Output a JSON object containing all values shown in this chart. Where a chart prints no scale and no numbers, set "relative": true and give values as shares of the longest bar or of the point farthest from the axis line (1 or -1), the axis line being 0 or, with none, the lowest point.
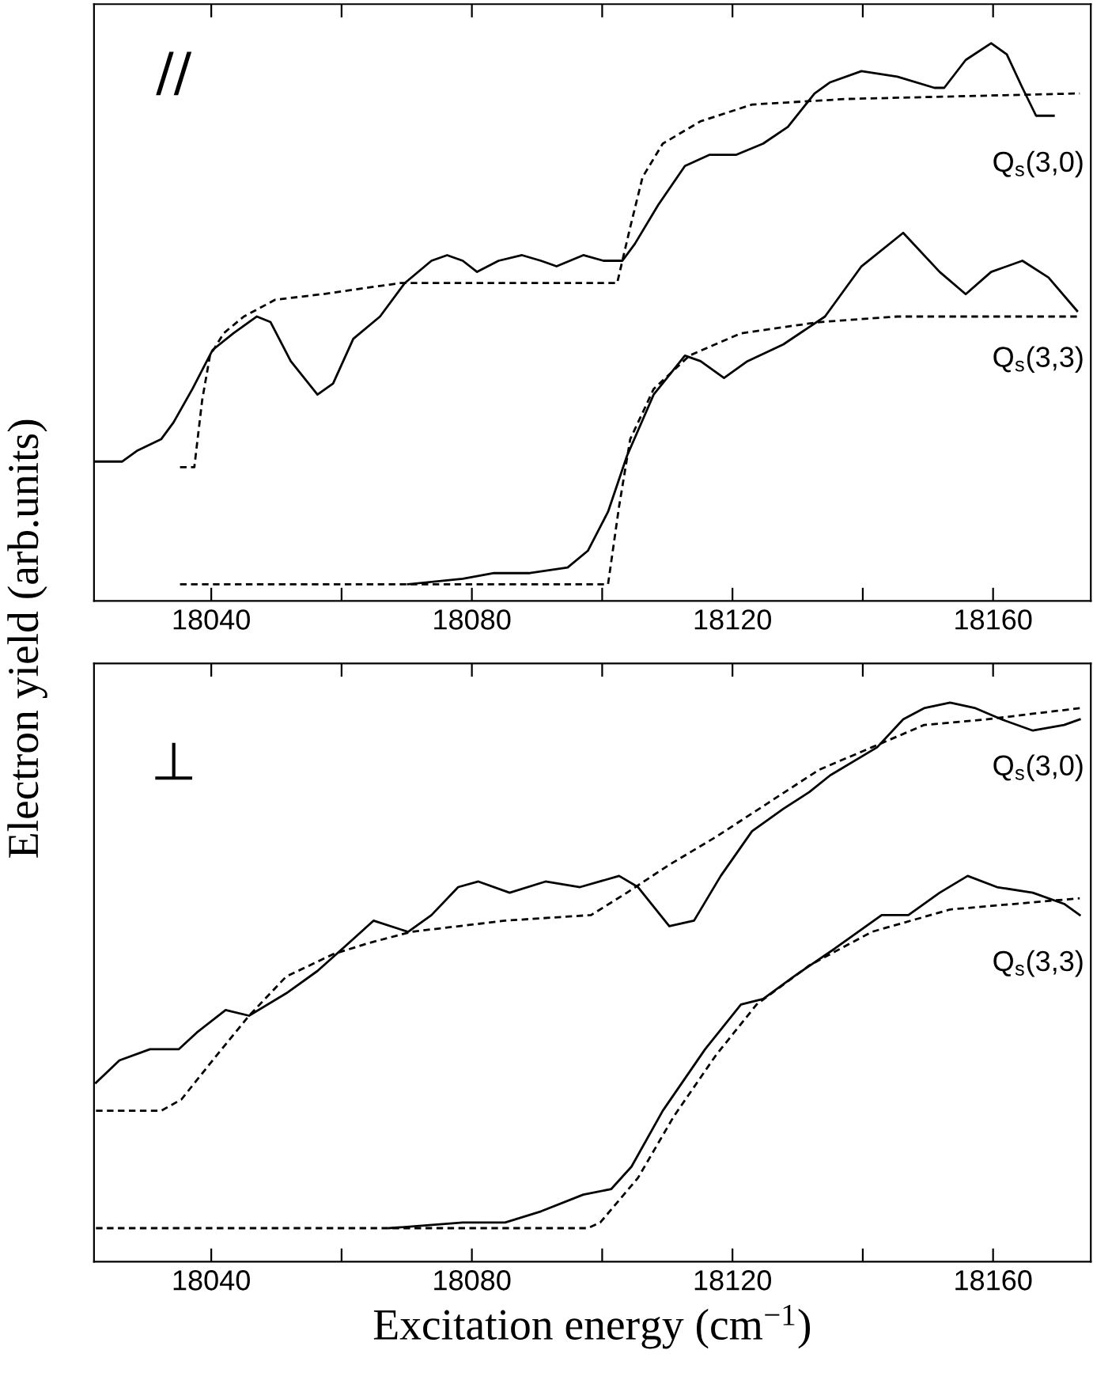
{
  "chart_data": [
    {
      "type": "line",
      "relative": true,
      "ylabel": "Electron yield (arb.units)",
      "annotations": [
        "//"
      ],
      "legend": false,
      "grid": false,
      "xlim": [
        18022,
        18175
      ],
      "xticks": [
        18040,
        {
          "value": 18060,
          "label": null
        },
        18080,
        {
          "value": 18100,
          "label": null
        },
        18120,
        {
          "value": 18140,
          "label": null
        },
        18160
      ],
      "series": [
        {
          "name": "Q$_{s}$(3,0)",
          "color": "#000000",
          "line_style": "solid",
          "x": [
            18022.3,
            18026.3,
            18028.7,
            18032.3,
            18034.2,
            18037.1,
            18040.2,
            18043.4,
            18047.0,
            18049.1,
            18052.2,
            18056.3,
            18058.7,
            18061.8,
            18065.9,
            18069.7,
            18073.8,
            18076.2,
            18078.6,
            18080.8,
            18084.1,
            18087.7,
            18090.6,
            18093.0,
            18097.1,
            18100.2,
            18103.1,
            18105.0,
            18108.6,
            18112.7,
            18116.5,
            18120.6,
            18124.7,
            18128.5,
            18132.6,
            18135.0,
            18139.8,
            18145.3,
            18151.0,
            18152.5,
            18155.8,
            18159.7,
            18162.1,
            18164.5,
            18166.6,
            18169.3
          ],
          "values": [
            0.25,
            0.25,
            0.27,
            0.29,
            0.32,
            0.38,
            0.45,
            0.48,
            0.51,
            0.5,
            0.43,
            0.37,
            0.39,
            0.47,
            0.51,
            0.57,
            0.61,
            0.62,
            0.61,
            0.59,
            0.61,
            0.62,
            0.61,
            0.6,
            0.62,
            0.61,
            0.61,
            0.64,
            0.71,
            0.78,
            0.8,
            0.8,
            0.82,
            0.85,
            0.91,
            0.93,
            0.95,
            0.94,
            0.92,
            0.92,
            0.97,
            1.0,
            0.98,
            0.92,
            0.87,
            0.87
          ]
        },
        {
          "color": "#000000",
          "line_style": "dashed",
          "x": [
            18035.2,
            18037.4,
            18038.6,
            18039.8,
            18041.9,
            18045.0,
            18049.8,
            18057.0,
            18069.0,
            18102.3,
            18104.3,
            18106.2,
            18109.3,
            18115.1,
            18123.0,
            18137.4,
            18173.3
          ],
          "values": [
            0.24,
            0.24,
            0.36,
            0.44,
            0.48,
            0.51,
            0.54,
            0.55,
            0.57,
            0.57,
            0.67,
            0.76,
            0.82,
            0.86,
            0.89,
            0.9,
            0.91
          ]
        },
        {
          "name": "Q$_{s}$(3,3)",
          "color": "#000000",
          "line_style": "solid",
          "x": [
            18070.2,
            18078.6,
            18083.4,
            18088.9,
            18094.7,
            18097.8,
            18100.9,
            18103.8,
            18107.9,
            18112.7,
            18115.1,
            18118.7,
            18122.3,
            18127.8,
            18134.2,
            18139.8,
            18146.2,
            18151.8,
            18155.8,
            18159.7,
            18164.5,
            18168.5,
            18172.9
          ],
          "values": [
            0.03,
            0.04,
            0.05,
            0.05,
            0.06,
            0.09,
            0.16,
            0.26,
            0.37,
            0.44,
            0.43,
            0.4,
            0.43,
            0.46,
            0.51,
            0.6,
            0.66,
            0.59,
            0.55,
            0.59,
            0.61,
            0.58,
            0.52
          ]
        },
        {
          "color": "#000000",
          "line_style": "dashed",
          "x": [
            18035.2,
            18100.9,
            18102.6,
            18104.3,
            18107.9,
            18113.4,
            18121.3,
            18133.3,
            18145.3,
            18173.3
          ],
          "values": [
            0.03,
            0.03,
            0.17,
            0.29,
            0.38,
            0.44,
            0.48,
            0.5,
            0.51,
            0.51
          ]
        }
      ]
    },
    {
      "type": "line",
      "relative": true,
      "xlabel": "Excitation energy (cm$^{−1}$)",
      "annotations": [
        "⊥"
      ],
      "legend": false,
      "grid": false,
      "xlim": [
        18022,
        18175
      ],
      "xticks": [
        18040,
        {
          "value": 18060,
          "label": null
        },
        18080,
        {
          "value": 18100,
          "label": null
        },
        18120,
        {
          "value": 18140,
          "label": null
        },
        18160
      ],
      "series": [
        {
          "name": "Q$_{s}$(3,0)",
          "color": "#000000",
          "line_style": "solid",
          "x": [
            18022.3,
            18025.9,
            18030.6,
            18035.0,
            18037.8,
            18042.2,
            18045.8,
            18051.5,
            18056.3,
            18061.1,
            18064.9,
            18070.2,
            18073.8,
            18077.9,
            18081.0,
            18085.8,
            18091.3,
            18096.6,
            18102.6,
            18105.5,
            18110.3,
            18114.1,
            18118.2,
            18123.0,
            18127.8,
            18131.8,
            18135.0,
            18142.2,
            18146.2,
            18149.4,
            18153.4,
            18157.3,
            18161.3,
            18166.1,
            18170.9,
            18173.3
          ],
          "values": [
            0.32,
            0.36,
            0.38,
            0.38,
            0.41,
            0.45,
            0.44,
            0.48,
            0.52,
            0.57,
            0.61,
            0.59,
            0.62,
            0.67,
            0.68,
            0.66,
            0.68,
            0.67,
            0.69,
            0.67,
            0.6,
            0.61,
            0.69,
            0.77,
            0.81,
            0.84,
            0.87,
            0.92,
            0.97,
            0.99,
            1.0,
            0.99,
            0.97,
            0.95,
            0.96,
            0.97
          ]
        },
        {
          "color": "#000000",
          "line_style": "dashed",
          "x": [
            18022.3,
            18032.3,
            18035.4,
            18040.2,
            18045.8,
            18051.5,
            18058.7,
            18064.2,
            18070.7,
            18085.1,
            18098.3,
            18103.8,
            18110.3,
            18117.5,
            18125.4,
            18133.3,
            18141.4,
            18149.4,
            18158.9,
            18173.3
          ],
          "values": [
            0.27,
            0.27,
            0.29,
            0.36,
            0.44,
            0.51,
            0.55,
            0.57,
            0.59,
            0.61,
            0.62,
            0.66,
            0.71,
            0.76,
            0.82,
            0.88,
            0.92,
            0.96,
            0.97,
            0.99
          ]
        },
        {
          "name": "Q$_{s}$(3,3)",
          "color": "#000000",
          "line_style": "solid",
          "x": [
            18067.3,
            18078.6,
            18085.1,
            18090.6,
            18097.1,
            18101.4,
            18104.5,
            18109.3,
            18115.8,
            18121.3,
            18124.7,
            18129.4,
            18135.7,
            18142.9,
            18147.0,
            18151.8,
            18156.1,
            18160.6,
            18166.1,
            18170.9,
            18173.3
          ],
          "values": [
            0.06,
            0.07,
            0.07,
            0.09,
            0.12,
            0.13,
            0.17,
            0.27,
            0.38,
            0.46,
            0.47,
            0.51,
            0.56,
            0.62,
            0.62,
            0.66,
            0.69,
            0.67,
            0.66,
            0.64,
            0.62
          ]
        },
        {
          "color": "#000000",
          "line_style": "dashed",
          "x": [
            18022.3,
            18097.8,
            18099.7,
            18105.5,
            18111.0,
            18117.5,
            18123.7,
            18131.8,
            18141.4,
            18153.4,
            18173.3
          ],
          "values": [
            0.06,
            0.06,
            0.07,
            0.15,
            0.26,
            0.37,
            0.46,
            0.53,
            0.59,
            0.63,
            0.65
          ]
        }
      ]
    }
  ]
}
